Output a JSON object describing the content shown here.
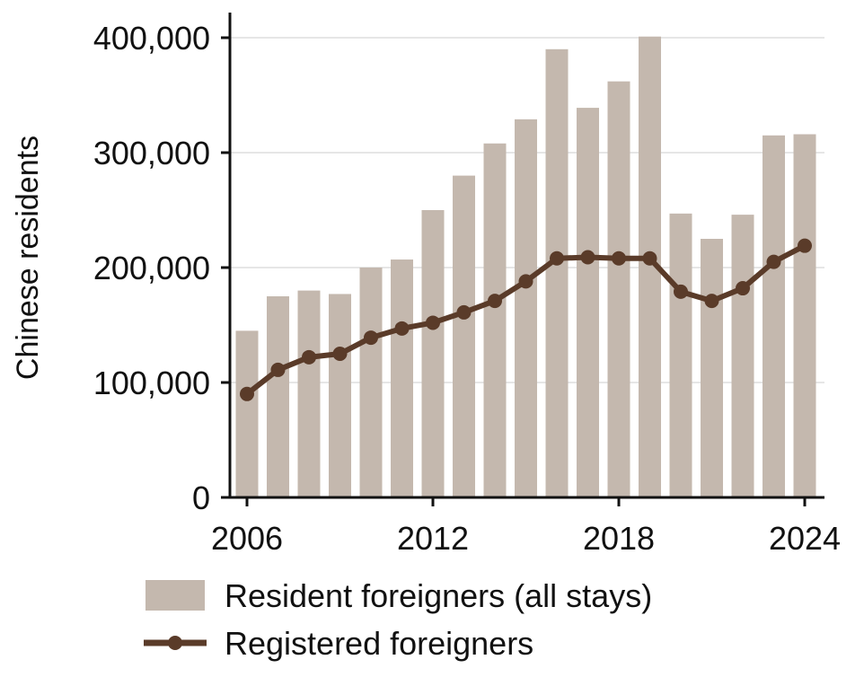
{
  "chart_data": {
    "type": "bar",
    "ylabel": "Chinese residents",
    "xlabel": "",
    "ylim": [
      0,
      420000
    ],
    "yticks": [
      0,
      100000,
      200000,
      300000,
      400000
    ],
    "ytick_labels": [
      "0",
      "100,000",
      "200,000",
      "300,000",
      "400,000"
    ],
    "xticks": [
      2006,
      2012,
      2018,
      2024
    ],
    "xtick_labels": [
      "2006",
      "2012",
      "2018",
      "2024"
    ],
    "grid": "horizontal",
    "legend_position": "bottom",
    "x": [
      2006,
      2007,
      2008,
      2009,
      2010,
      2011,
      2012,
      2013,
      2014,
      2015,
      2016,
      2017,
      2018,
      2019,
      2020,
      2021,
      2022,
      2023,
      2024
    ],
    "series": [
      {
        "name": "Resident foreigners (all stays)",
        "type": "bar",
        "color": "#c4b8ae",
        "values": [
          145000,
          175000,
          180000,
          177000,
          200000,
          207000,
          250000,
          280000,
          308000,
          329000,
          390000,
          339000,
          362000,
          401000,
          247000,
          225000,
          246000,
          315000,
          316000
        ]
      },
      {
        "name": "Registered foreigners",
        "type": "line",
        "color": "#5a3b29",
        "values": [
          90000,
          111000,
          122000,
          125000,
          139000,
          147000,
          152000,
          161000,
          171000,
          188000,
          208000,
          209000,
          208000,
          208000,
          179000,
          171000,
          182000,
          205000,
          219000
        ]
      }
    ]
  }
}
